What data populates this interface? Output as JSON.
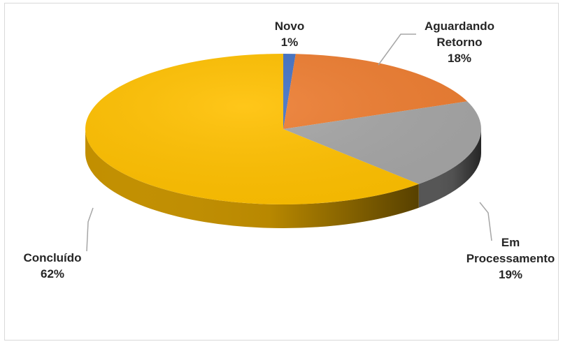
{
  "chart_data": {
    "type": "pie",
    "title": "",
    "categories": [
      "Novo",
      "Aguardando Retorno",
      "Em Processamento",
      "Concluído"
    ],
    "values": [
      1,
      18,
      19,
      62
    ],
    "colors": [
      "#4472C4",
      "#ED7D31",
      "#A5A5A5",
      "#FFC000"
    ],
    "side_colors": [
      "#2F528F",
      "#B0561F",
      "#555555",
      "#C28F00"
    ],
    "labels": [
      {
        "lines": [
          "Novo",
          "1%"
        ]
      },
      {
        "lines": [
          "Aguardando",
          "Retorno",
          "18%"
        ]
      },
      {
        "lines": [
          "Em",
          "Processamento",
          "19%"
        ]
      },
      {
        "lines": [
          "Concluído",
          "62%"
        ]
      }
    ],
    "style": "3d-pie",
    "legend": "none"
  }
}
